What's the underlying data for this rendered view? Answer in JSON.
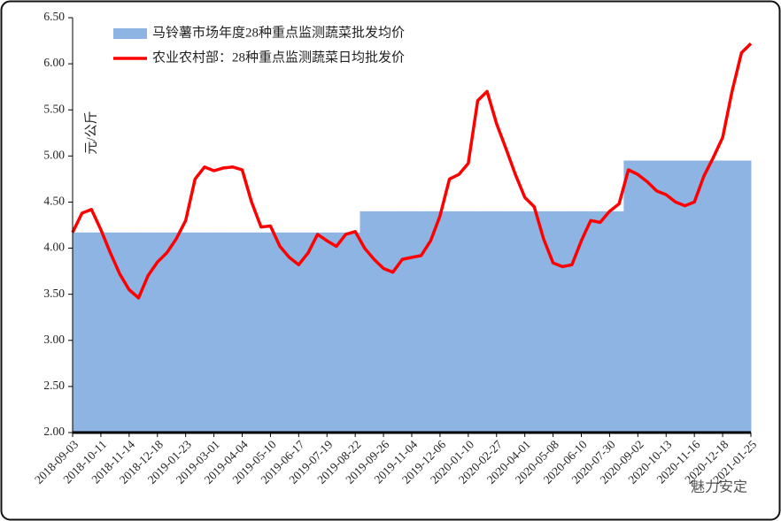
{
  "chart_data": {
    "type": "line",
    "y_label": "元/公斤",
    "watermark": "魅力安定",
    "categories": [
      "2018-09-03",
      null,
      null,
      "2018-10-11",
      null,
      null,
      "2018-11-14",
      null,
      null,
      "2018-12-18",
      null,
      null,
      "2019-01-23",
      null,
      null,
      "2019-03-01",
      null,
      null,
      "2019-04-04",
      null,
      null,
      "2019-05-10",
      null,
      null,
      "2019-06-17",
      null,
      null,
      "2019-07-19",
      null,
      null,
      "2019-08-22",
      null,
      null,
      "2019-09-26",
      null,
      null,
      "2019-11-04",
      null,
      null,
      "2019-12-06",
      null,
      null,
      "2020-01-10",
      null,
      null,
      "2020-02-27",
      null,
      null,
      "2020-04-01",
      null,
      null,
      "2020-05-08",
      null,
      null,
      "2020-06-10",
      null,
      null,
      "2020-07-30",
      null,
      null,
      "2020-09-02",
      null,
      null,
      "2020-10-13",
      null,
      null,
      "2020-11-16",
      null,
      null,
      "2020-12-18",
      null,
      null,
      "2021-01-25"
    ],
    "series": [
      {
        "name": "马铃薯市场年度28种重点监测蔬菜批发均价",
        "kind": "area",
        "color": "#8eb4e3",
        "values": [
          4.17,
          4.17,
          4.17,
          4.17,
          4.17,
          4.17,
          4.17,
          4.17,
          4.17,
          4.17,
          4.17,
          4.17,
          4.17,
          4.17,
          4.17,
          4.17,
          4.17,
          4.17,
          4.17,
          4.17,
          4.17,
          4.17,
          4.17,
          4.17,
          4.17,
          4.17,
          4.17,
          4.17,
          4.17,
          4.17,
          4.17,
          4.4,
          4.4,
          4.4,
          4.4,
          4.4,
          4.4,
          4.4,
          4.4,
          4.4,
          4.4,
          4.4,
          4.4,
          4.4,
          4.4,
          4.4,
          4.4,
          4.4,
          4.4,
          4.4,
          4.4,
          4.4,
          4.4,
          4.4,
          4.4,
          4.4,
          4.4,
          4.4,
          4.4,
          4.95,
          4.95,
          4.95,
          4.95,
          4.95,
          4.95,
          4.95,
          4.95,
          4.95,
          4.95,
          4.95,
          4.95,
          4.95,
          4.95
        ]
      },
      {
        "name": "农业农村部：28种重点监测蔬菜日均批发价",
        "kind": "line",
        "color": "#ff0000",
        "values": [
          4.17,
          4.38,
          4.42,
          4.2,
          3.95,
          3.72,
          3.55,
          3.46,
          3.7,
          3.85,
          3.95,
          4.1,
          4.3,
          4.75,
          4.88,
          4.84,
          4.87,
          4.88,
          4.85,
          4.5,
          4.23,
          4.24,
          4.02,
          3.9,
          3.82,
          3.95,
          4.15,
          4.08,
          4.02,
          4.15,
          4.18,
          4.0,
          3.88,
          3.78,
          3.74,
          3.88,
          3.9,
          3.92,
          4.08,
          4.35,
          4.75,
          4.8,
          4.92,
          5.6,
          5.7,
          5.35,
          5.08,
          4.8,
          4.55,
          4.45,
          4.1,
          3.84,
          3.8,
          3.82,
          4.08,
          4.3,
          4.28,
          4.4,
          4.48,
          4.85,
          4.8,
          4.72,
          4.62,
          4.58,
          4.5,
          4.46,
          4.5,
          4.78,
          4.98,
          5.2,
          5.7,
          6.12,
          6.22
        ]
      }
    ],
    "ylim": [
      2,
      6.5
    ],
    "yticks": [
      {
        "value": 2,
        "label": "2.00"
      },
      {
        "value": 2.5,
        "label": "2.50"
      },
      {
        "value": 3,
        "label": "3.00"
      },
      {
        "value": 3.5,
        "label": "3.50"
      },
      {
        "value": 4,
        "label": "4.00"
      },
      {
        "value": 4.5,
        "label": "4.50"
      },
      {
        "value": 5,
        "label": "5.00"
      },
      {
        "value": 5.5,
        "label": "5.50"
      },
      {
        "value": 6,
        "label": "6.00"
      },
      {
        "value": 6.5,
        "label": "6.50"
      }
    ],
    "legend": "upper left",
    "grid": false
  }
}
